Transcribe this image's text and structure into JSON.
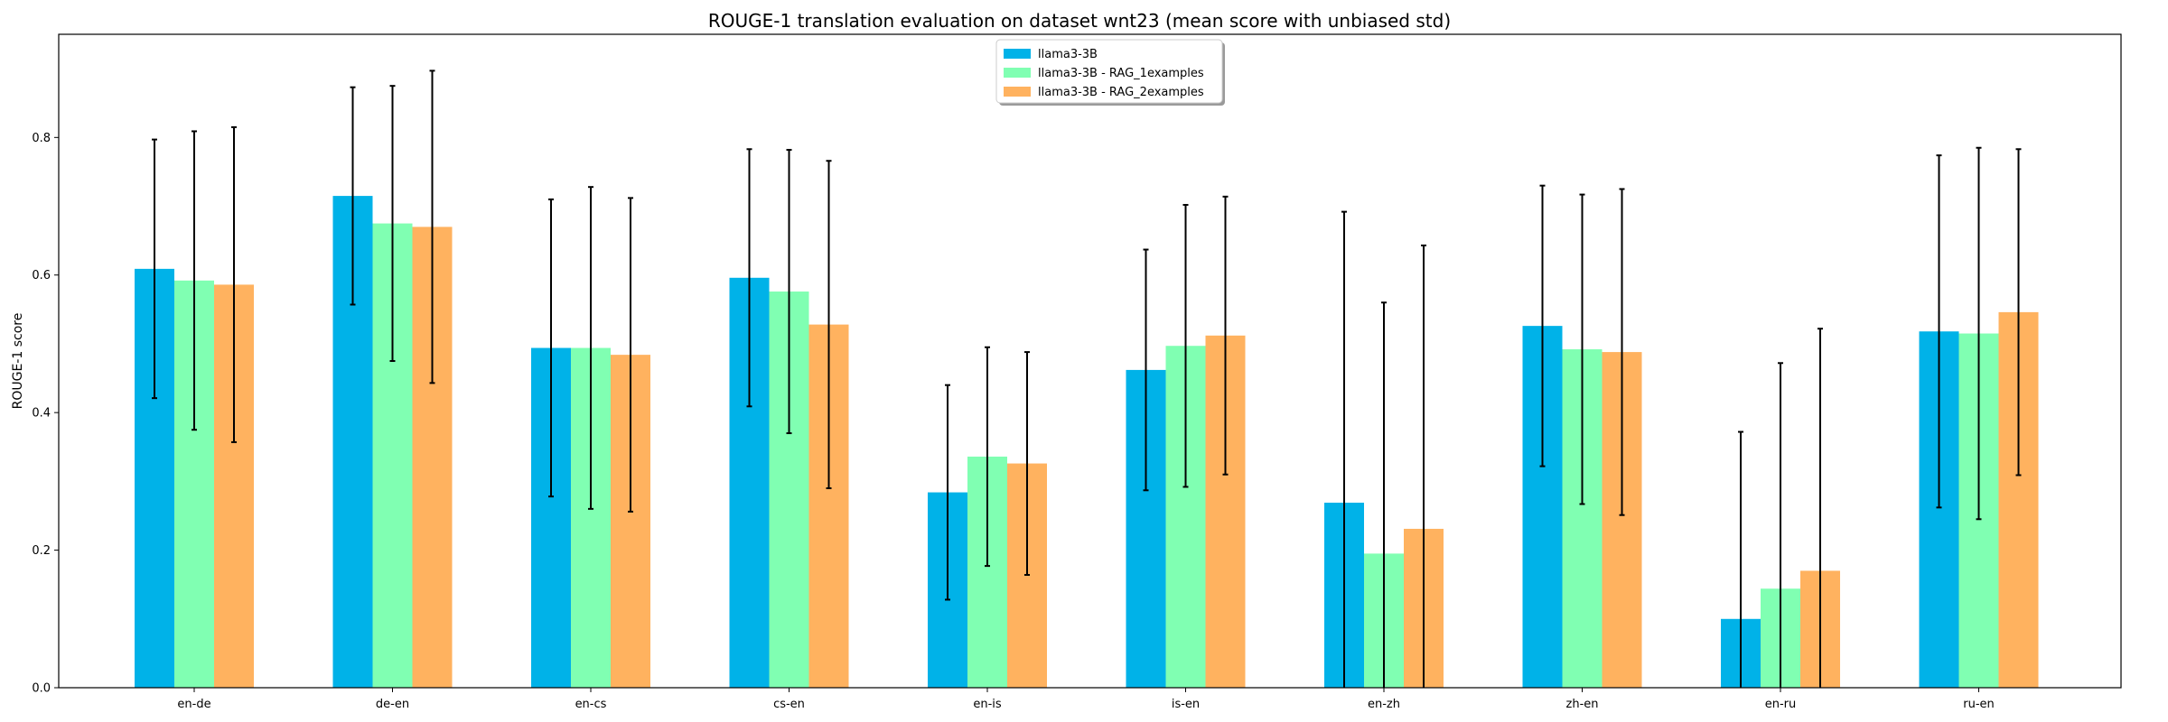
{
  "chart_data": {
    "type": "bar",
    "title": "ROUGE-1 translation evaluation on dataset wnt23 (mean score with unbiased std)",
    "xlabel": "",
    "ylabel": "ROUGE-1 score",
    "ylim": [
      0,
      0.95
    ],
    "yticks": [
      0.0,
      0.2,
      0.4,
      0.6,
      0.8
    ],
    "ytick_labels": [
      "0.0",
      "0.2",
      "0.4",
      "0.6",
      "0.8"
    ],
    "categories": [
      "en-de",
      "de-en",
      "en-cs",
      "cs-en",
      "en-is",
      "is-en",
      "en-zh",
      "zh-en",
      "en-ru",
      "ru-en"
    ],
    "legend_position": "top-center",
    "grid": false,
    "series": [
      {
        "name": "llama3-3B",
        "color": "#00b2e8",
        "values": [
          0.609,
          0.715,
          0.494,
          0.596,
          0.284,
          0.462,
          0.269,
          0.526,
          0.1,
          0.518
        ],
        "std": [
          0.188,
          0.158,
          0.216,
          0.187,
          0.156,
          0.175,
          0.423,
          0.204,
          0.272,
          0.256
        ]
      },
      {
        "name": "llama3-3B - RAG_1examples",
        "color": "#80ffb2",
        "values": [
          0.592,
          0.675,
          0.494,
          0.576,
          0.336,
          0.497,
          0.195,
          0.492,
          0.144,
          0.515
        ],
        "std": [
          0.217,
          0.2,
          0.234,
          0.206,
          0.159,
          0.205,
          0.365,
          0.225,
          0.328,
          0.27
        ]
      },
      {
        "name": "llama3-3B - RAG_2examples",
        "color": "#ffb25f",
        "values": [
          0.586,
          0.67,
          0.484,
          0.528,
          0.326,
          0.512,
          0.231,
          0.488,
          0.17,
          0.546
        ],
        "std": [
          0.229,
          0.227,
          0.228,
          0.238,
          0.162,
          0.202,
          0.412,
          0.237,
          0.352,
          0.237
        ]
      }
    ]
  }
}
